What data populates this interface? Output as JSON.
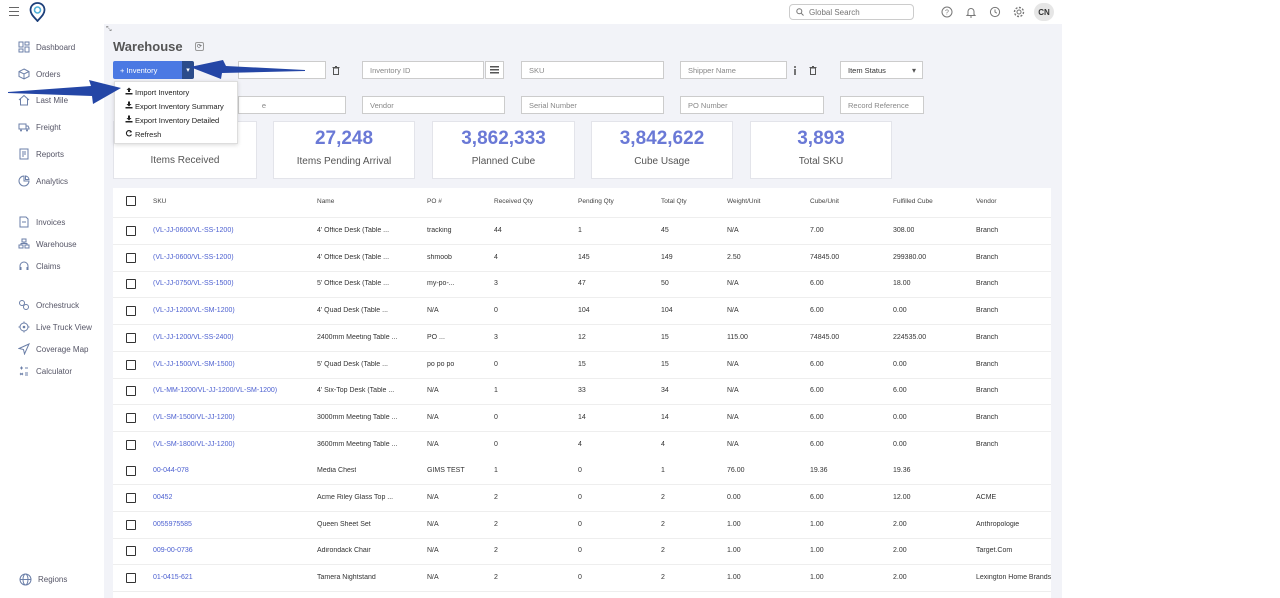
{
  "header": {
    "search_placeholder": "Global Search",
    "avatar_initials": "CN"
  },
  "sidebar": {
    "items": [
      {
        "label": "Dashboard",
        "icon": "dashboard-icon"
      },
      {
        "label": "Orders",
        "icon": "box-icon"
      },
      {
        "label": "Last Mile",
        "icon": "home-icon"
      },
      {
        "label": "Freight",
        "icon": "truck-icon"
      },
      {
        "label": "Reports",
        "icon": "reports-icon"
      },
      {
        "label": "Analytics",
        "icon": "analytics-icon"
      },
      {
        "label": "Invoices",
        "icon": "invoice-icon"
      },
      {
        "label": "Warehouse",
        "icon": "warehouse-icon"
      },
      {
        "label": "Claims",
        "icon": "headset-icon"
      },
      {
        "label": "Orchestruck",
        "icon": "orchestruck-icon"
      },
      {
        "label": "Live Truck View",
        "icon": "target-icon"
      },
      {
        "label": "Coverage Map",
        "icon": "navigation-icon"
      },
      {
        "label": "Calculator",
        "icon": "calculator-icon"
      }
    ],
    "regions_label": "Regions"
  },
  "page": {
    "title": "Warehouse"
  },
  "toolbar": {
    "inventory_button": "+ Inventory",
    "inventory_id_placeholder": "Inventory ID",
    "sku_placeholder": "SKU",
    "shipper_name_placeholder": "Shipper Name",
    "item_status_label": "Item Status",
    "vendor_placeholder": "Vendor",
    "serial_number_placeholder": "Serial Number",
    "po_number_placeholder": "PO Number",
    "record_reference_placeholder": "Record Reference",
    "hidden_field_suffix": "e"
  },
  "dropdown": {
    "items": [
      "Import Inventory",
      "Export Inventory Summary",
      "Export Inventory Detailed",
      "Refresh"
    ]
  },
  "stats": [
    {
      "value": "",
      "label": "Items Received"
    },
    {
      "value": "27,248",
      "label": "Items Pending Arrival"
    },
    {
      "value": "3,862,333",
      "label": "Planned Cube"
    },
    {
      "value": "3,842,622",
      "label": "Cube Usage"
    },
    {
      "value": "3,893",
      "label": "Total SKU"
    }
  ],
  "table": {
    "columns": [
      "SKU",
      "Name",
      "PO #",
      "Received Qty",
      "Pending Qty",
      "Total Qty",
      "Weight/Unit",
      "Cube/Unit",
      "Fulfilled Cube",
      "Vendor"
    ],
    "rows": [
      [
        "(VL-JJ-0600/VL-SS-1200)",
        "4' Office Desk (Table ...",
        "tracking",
        "44",
        "1",
        "45",
        "N/A",
        "7.00",
        "308.00",
        "Branch"
      ],
      [
        "(VL-JJ-0600/VL-SS-1200)",
        "4' Office Desk (Table ...",
        "shmoob",
        "4",
        "145",
        "149",
        "2.50",
        "74845.00",
        "299380.00",
        "Branch"
      ],
      [
        "(VL-JJ-0750/VL-SS-1500)",
        "5' Office Desk (Table ...",
        "my-po-...",
        "3",
        "47",
        "50",
        "N/A",
        "6.00",
        "18.00",
        "Branch"
      ],
      [
        "(VL-JJ-1200/VL-SM-1200)",
        "4' Quad Desk (Table ...",
        "N/A",
        "0",
        "104",
        "104",
        "N/A",
        "6.00",
        "0.00",
        "Branch"
      ],
      [
        "(VL-JJ-1200/VL-SS-2400)",
        "2400mm Meeting Table ...",
        "PO ...",
        "3",
        "12",
        "15",
        "115.00",
        "74845.00",
        "224535.00",
        "Branch"
      ],
      [
        "(VL-JJ-1500/VL-SM-1500)",
        "5' Quad Desk (Table ...",
        "po po po",
        "0",
        "15",
        "15",
        "N/A",
        "6.00",
        "0.00",
        "Branch"
      ],
      [
        "(VL-MM-1200/VL-JJ-1200/VL-SM-1200)",
        "4' Six-Top Desk (Table ...",
        "N/A",
        "1",
        "33",
        "34",
        "N/A",
        "6.00",
        "6.00",
        "Branch"
      ],
      [
        "(VL-SM-1500/VL-JJ-1200)",
        "3000mm Meeting Table ...",
        "N/A",
        "0",
        "14",
        "14",
        "N/A",
        "6.00",
        "0.00",
        "Branch"
      ],
      [
        "(VL-SM-1800/VL-JJ-1200)",
        "3600mm Meeting Table ...",
        "N/A",
        "0",
        "4",
        "4",
        "N/A",
        "6.00",
        "0.00",
        "Branch"
      ],
      [
        "00-044-078",
        "Media Chest",
        "GIMS TEST",
        "1",
        "0",
        "1",
        "76.00",
        "19.36",
        "19.36",
        ""
      ],
      [
        "00452",
        "Acme Riley Glass Top ...",
        "N/A",
        "2",
        "0",
        "2",
        "0.00",
        "6.00",
        "12.00",
        "ACME"
      ],
      [
        "0055975585",
        "Queen Sheet Set",
        "N/A",
        "2",
        "0",
        "2",
        "1.00",
        "1.00",
        "2.00",
        "Anthropologie"
      ],
      [
        "009-00-0736",
        "Adirondack Chair",
        "N/A",
        "2",
        "0",
        "2",
        "1.00",
        "1.00",
        "2.00",
        "Target.Com"
      ],
      [
        "01-0415-621",
        "Tamera Nightstand",
        "N/A",
        "2",
        "0",
        "2",
        "1.00",
        "1.00",
        "2.00",
        "Lexington Home Brands"
      ]
    ]
  },
  "colors": {
    "accent": "#4b79e3",
    "stat_number": "#6a79d6",
    "link": "#4b5fd0",
    "arrow": "#2446a6"
  }
}
